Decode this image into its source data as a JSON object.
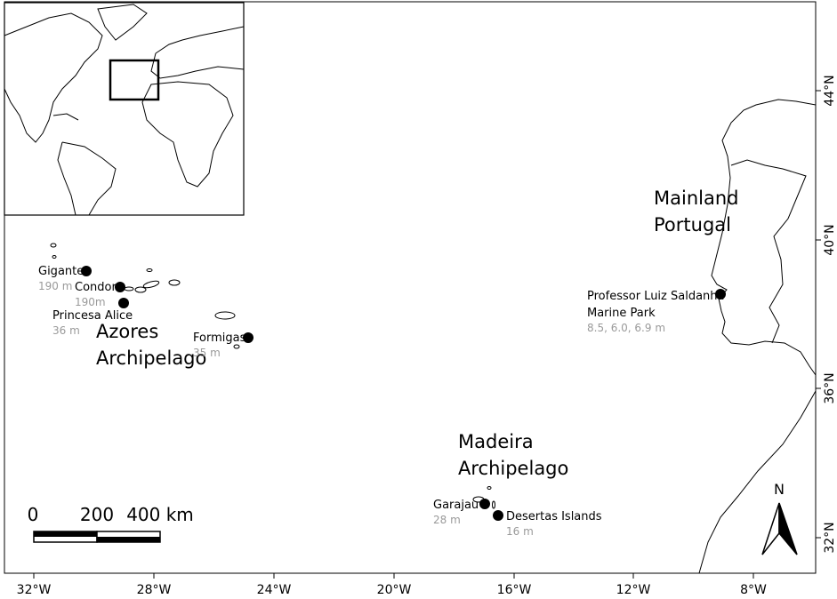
{
  "axes": {
    "x_labels": [
      "32°W",
      "28°W",
      "24°W",
      "20°W",
      "16°W",
      "12°W",
      "8°W"
    ],
    "y_labels": [
      "44°N",
      "40°N",
      "36°N",
      "32°N"
    ]
  },
  "regions": [
    {
      "lines": [
        "Mainland",
        "Portugal"
      ]
    },
    {
      "lines": [
        "Azores",
        "Archipelago"
      ]
    },
    {
      "lines": [
        "Madeira",
        "Archipelago"
      ]
    }
  ],
  "sites": [
    {
      "lines": [
        "Gigante"
      ],
      "depth": "190 m"
    },
    {
      "lines": [
        "Condor"
      ],
      "depth": "190m"
    },
    {
      "lines": [
        "Princesa Alice"
      ],
      "depth": "36 m"
    },
    {
      "lines": [
        "Formigas"
      ],
      "depth": "35 m"
    },
    {
      "lines": [
        "Garajau"
      ],
      "depth": "28 m"
    },
    {
      "lines": [
        "Desertas Islands"
      ],
      "depth": "16 m"
    },
    {
      "lines": [
        "Professor Luiz Saldanha",
        "Marine Park"
      ],
      "depth": "8.5, 6.0, 6.9 m"
    }
  ],
  "scale_bar": {
    "labels": [
      "0",
      "200",
      "400 km"
    ]
  },
  "north_arrow": "N"
}
